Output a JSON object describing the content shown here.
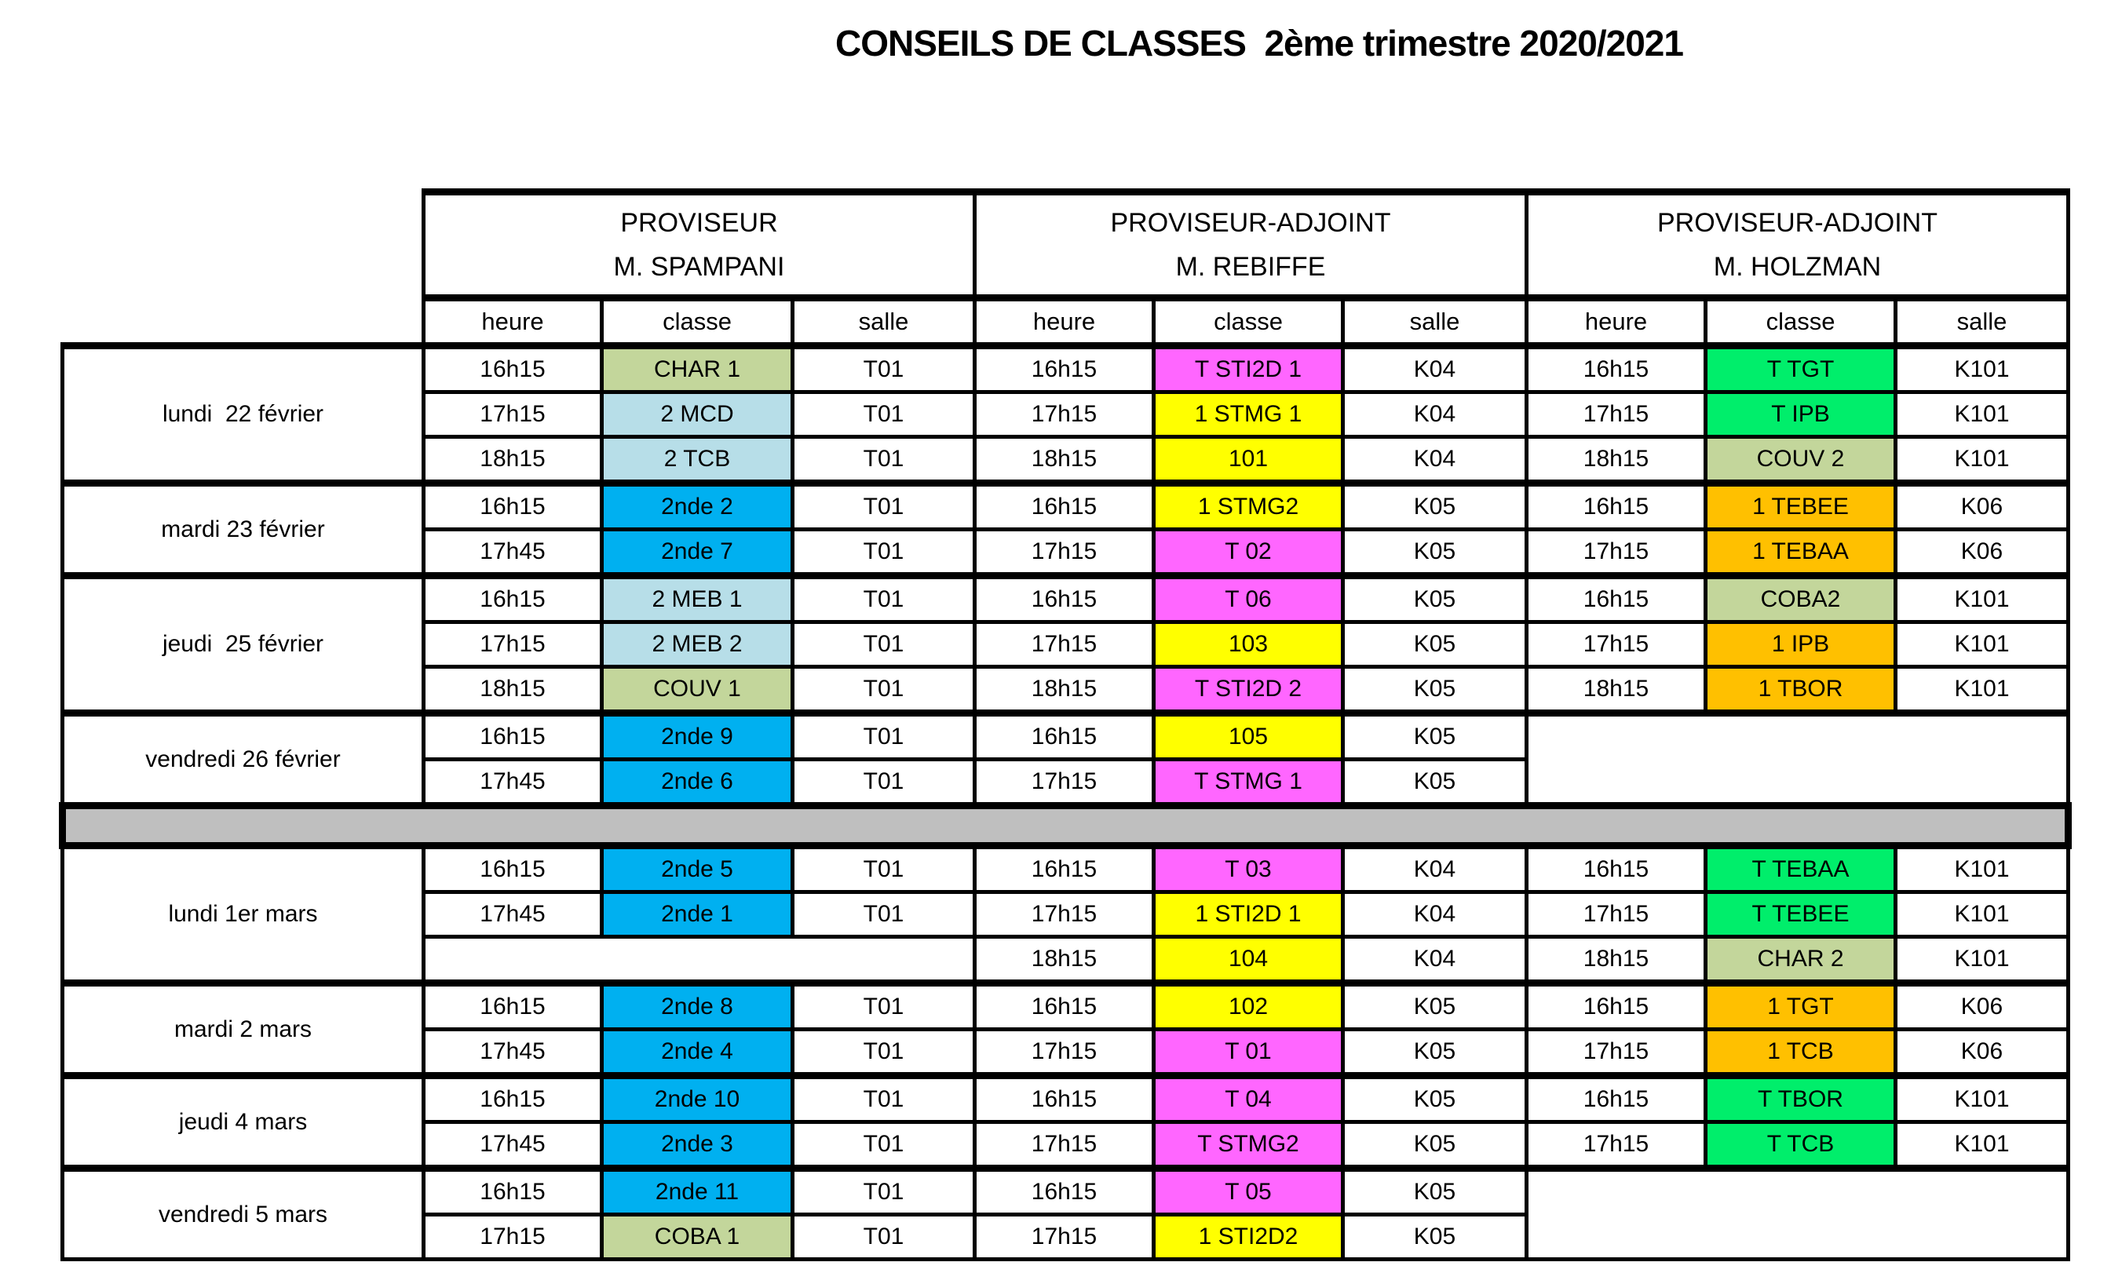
{
  "title": "CONSEILS DE CLASSES  2ème trimestre 2020/2021",
  "groups": [
    {
      "role": "PROVISEUR",
      "name": "M. SPAMPANI"
    },
    {
      "role": "PROVISEUR-ADJOINT",
      "name": "M. REBIFFE"
    },
    {
      "role": "PROVISEUR-ADJOINT",
      "name": "M. HOLZMAN"
    }
  ],
  "column_headers": [
    "heure",
    "classe",
    "salle"
  ],
  "colors": {
    "olive": "#C3D69B",
    "light_blue": "#B7DEE8",
    "blue": "#00B0F0",
    "magenta": "#FF66FF",
    "yellow": "#FFFF00",
    "green": "#00EE6B",
    "orange": "#FFC000",
    "separator_gray": "#BFBFBF"
  },
  "sections": [
    {
      "type": "days",
      "blocks": [
        {
          "date": "lundi  22 février",
          "rows": [
            {
              "sp": [
                "16h15",
                "CHAR 1",
                "T01",
                "olive"
              ],
              "re": [
                "16h15",
                "T STI2D 1",
                "K04",
                "magenta"
              ],
              "ho": [
                "16h15",
                "T TGT",
                "K101",
                "green"
              ]
            },
            {
              "sp": [
                "17h15",
                "2 MCD",
                "T01",
                "light_blue"
              ],
              "re": [
                "17h15",
                "1 STMG 1",
                "K04",
                "yellow"
              ],
              "ho": [
                "17h15",
                "T IPB",
                "K101",
                "green"
              ]
            },
            {
              "sp": [
                "18h15",
                "2 TCB",
                "T01",
                "light_blue"
              ],
              "re": [
                "18h15",
                "101",
                "K04",
                "yellow"
              ],
              "ho": [
                "18h15",
                "COUV 2",
                "K101",
                "olive"
              ]
            }
          ]
        },
        {
          "date": "mardi 23 février",
          "rows": [
            {
              "sp": [
                "16h15",
                "2nde 2",
                "T01",
                "blue"
              ],
              "re": [
                "16h15",
                "1 STMG2",
                "K05",
                "yellow"
              ],
              "ho": [
                "16h15",
                "1 TEBEE",
                "K06",
                "orange"
              ]
            },
            {
              "sp": [
                "17h45",
                "2nde 7",
                "T01",
                "blue"
              ],
              "re": [
                "17h15",
                "T 02",
                "K05",
                "magenta"
              ],
              "ho": [
                "17h15",
                "1 TEBAA",
                "K06",
                "orange"
              ]
            }
          ]
        },
        {
          "date": "jeudi  25 février",
          "rows": [
            {
              "sp": [
                "16h15",
                "2 MEB 1",
                "T01",
                "light_blue"
              ],
              "re": [
                "16h15",
                "T 06",
                "K05",
                "magenta"
              ],
              "ho": [
                "16h15",
                "COBA2",
                "K101",
                "olive"
              ]
            },
            {
              "sp": [
                "17h15",
                "2 MEB 2",
                "T01",
                "light_blue"
              ],
              "re": [
                "17h15",
                "103",
                "K05",
                "yellow"
              ],
              "ho": [
                "17h15",
                "1 IPB",
                "K101",
                "orange"
              ]
            },
            {
              "sp": [
                "18h15",
                "COUV 1",
                "T01",
                "olive"
              ],
              "re": [
                "18h15",
                "T STI2D 2",
                "K05",
                "magenta"
              ],
              "ho": [
                "18h15",
                "1 TBOR",
                "K101",
                "orange"
              ]
            }
          ]
        },
        {
          "date": "vendredi 26 février",
          "holzman_blank": true,
          "rows": [
            {
              "sp": [
                "16h15",
                "2nde 9",
                "T01",
                "blue"
              ],
              "re": [
                "16h15",
                "105",
                "K05",
                "yellow"
              ],
              "ho": null
            },
            {
              "sp": [
                "17h45",
                "2nde 6",
                "T01",
                "blue"
              ],
              "re": [
                "17h15",
                "T STMG 1",
                "K05",
                "magenta"
              ],
              "ho": null
            }
          ]
        }
      ]
    },
    {
      "type": "separator"
    },
    {
      "type": "days",
      "blocks": [
        {
          "date": "lundi 1er mars",
          "rows": [
            {
              "sp": [
                "16h15",
                "2nde 5",
                "T01",
                "blue"
              ],
              "re": [
                "16h15",
                "T 03",
                "K04",
                "magenta"
              ],
              "ho": [
                "16h15",
                "T TEBAA",
                "K101",
                "green"
              ]
            },
            {
              "sp": [
                "17h45",
                "2nde 1",
                "T01",
                "blue"
              ],
              "re": [
                "17h15",
                "1 STI2D 1",
                "K04",
                "yellow"
              ],
              "ho": [
                "17h15",
                "T TEBEE",
                "K101",
                "green"
              ]
            },
            {
              "sp": null,
              "re": [
                "18h15",
                "104",
                "K04",
                "yellow"
              ],
              "ho": [
                "18h15",
                "CHAR 2",
                "K101",
                "olive"
              ]
            }
          ]
        },
        {
          "date": "mardi 2 mars",
          "rows": [
            {
              "sp": [
                "16h15",
                "2nde 8",
                "T01",
                "blue"
              ],
              "re": [
                "16h15",
                "102",
                "K05",
                "yellow"
              ],
              "ho": [
                "16h15",
                "1 TGT",
                "K06",
                "orange"
              ]
            },
            {
              "sp": [
                "17h45",
                "2nde 4",
                "T01",
                "blue"
              ],
              "re": [
                "17h15",
                "T 01",
                "K05",
                "magenta"
              ],
              "ho": [
                "17h15",
                "1 TCB",
                "K06",
                "orange"
              ]
            }
          ]
        },
        {
          "date": "jeudi 4 mars",
          "rows": [
            {
              "sp": [
                "16h15",
                "2nde 10",
                "T01",
                "blue"
              ],
              "re": [
                "16h15",
                "T 04",
                "K05",
                "magenta"
              ],
              "ho": [
                "16h15",
                "T TBOR",
                "K101",
                "green"
              ]
            },
            {
              "sp": [
                "17h45",
                "2nde 3",
                "T01",
                "blue"
              ],
              "re": [
                "17h15",
                "T STMG2",
                "K05",
                "magenta"
              ],
              "ho": [
                "17h15",
                "T TCB",
                "K101",
                "green"
              ]
            }
          ]
        },
        {
          "date": "vendredi 5 mars",
          "holzman_blank": true,
          "last": true,
          "rows": [
            {
              "sp": [
                "16h15",
                "2nde 11",
                "T01",
                "blue"
              ],
              "re": [
                "16h15",
                "T 05",
                "K05",
                "magenta"
              ],
              "ho": null
            },
            {
              "sp": [
                "17h15",
                "COBA 1",
                "T01",
                "olive"
              ],
              "re": [
                "17h15",
                "1 STI2D2",
                "K05",
                "yellow"
              ],
              "ho": null
            }
          ]
        }
      ]
    }
  ]
}
